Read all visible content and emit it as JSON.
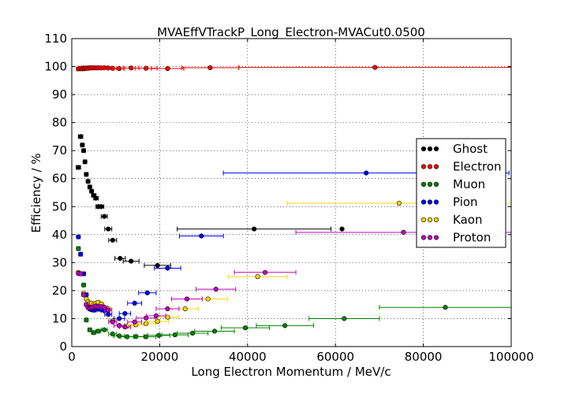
{
  "chart_data": {
    "type": "scatter",
    "title": "MVAEffVTrackP_Long_Electron-MVACut0.0500",
    "xlabel": "Long Electron Momentum / MeV/c",
    "ylabel": "Efficiency / %",
    "xlim": [
      0,
      100000
    ],
    "ylim": [
      0,
      110
    ],
    "x_ticks": [
      0,
      20000,
      40000,
      60000,
      80000,
      100000
    ],
    "y_ticks": [
      0,
      10,
      20,
      30,
      40,
      50,
      60,
      70,
      80,
      90,
      100,
      110
    ],
    "grid": true,
    "legend_position": "right",
    "series": [
      {
        "name": "Ghost",
        "color": "#000000",
        "points": [
          [
            1500,
            64,
            500
          ],
          [
            2000,
            75,
            500
          ],
          [
            2400,
            72,
            400
          ],
          [
            2700,
            70,
            400
          ],
          [
            3000,
            66,
            400
          ],
          [
            3300,
            61.5,
            400
          ],
          [
            3700,
            59,
            400
          ],
          [
            4100,
            57,
            400
          ],
          [
            4500,
            55.5,
            400
          ],
          [
            5000,
            54,
            500
          ],
          [
            5500,
            53,
            500
          ],
          [
            6000,
            50,
            500
          ],
          [
            6700,
            50,
            600
          ],
          [
            7400,
            46.5,
            700
          ],
          [
            8300,
            42,
            800
          ],
          [
            9300,
            38,
            900
          ],
          [
            11000,
            31.5,
            1200
          ],
          [
            13500,
            30.5,
            1800
          ],
          [
            19500,
            29,
            3000
          ],
          [
            41500,
            42,
            17500
          ],
          [
            61500,
            42,
            0
          ]
        ]
      },
      {
        "name": "Electron",
        "color": "#ff0000",
        "points": [
          [
            1500,
            99.2,
            400
          ],
          [
            2000,
            99.4,
            400
          ],
          [
            2400,
            99.2,
            400
          ],
          [
            2700,
            99.5,
            400
          ],
          [
            3000,
            99.3,
            400
          ],
          [
            3300,
            99.5,
            400
          ],
          [
            3700,
            99.4,
            400
          ],
          [
            4100,
            99.6,
            400
          ],
          [
            4500,
            99.5,
            400
          ],
          [
            5000,
            99.6,
            500
          ],
          [
            5500,
            99.5,
            500
          ],
          [
            6000,
            99.6,
            500
          ],
          [
            6700,
            99.5,
            600
          ],
          [
            7400,
            99.6,
            700
          ],
          [
            8300,
            99.5,
            800
          ],
          [
            9300,
            99.4,
            900
          ],
          [
            10800,
            99.3,
            1200
          ],
          [
            13500,
            99.5,
            1800
          ],
          [
            16900,
            99.4,
            2500
          ],
          [
            21800,
            99.3,
            3700
          ],
          [
            31500,
            99.6,
            6500
          ],
          [
            69000,
            99.7,
            31000
          ]
        ]
      },
      {
        "name": "Muon",
        "color": "#008000",
        "points": [
          [
            1500,
            35,
            400
          ],
          [
            2000,
            26,
            400
          ],
          [
            2700,
            22,
            400
          ],
          [
            3300,
            9.5,
            400
          ],
          [
            4100,
            6,
            400
          ],
          [
            5000,
            5,
            500
          ],
          [
            6000,
            5.5,
            500
          ],
          [
            7400,
            6,
            700
          ],
          [
            9300,
            4.5,
            900
          ],
          [
            10800,
            3.8,
            1200
          ],
          [
            12600,
            3.5,
            1500
          ],
          [
            14600,
            3.6,
            1800
          ],
          [
            16900,
            3.5,
            2200
          ],
          [
            19800,
            4,
            2500
          ],
          [
            23500,
            4.2,
            3000
          ],
          [
            27500,
            4.8,
            3500
          ],
          [
            32500,
            5.5,
            4500
          ],
          [
            39500,
            6.7,
            5500
          ],
          [
            48500,
            7.5,
            6500
          ],
          [
            62000,
            10,
            8000
          ],
          [
            85000,
            14,
            15000
          ]
        ]
      },
      {
        "name": "Pion",
        "color": "#0000ff",
        "points": [
          [
            1500,
            39.2,
            400
          ],
          [
            2000,
            33,
            400
          ],
          [
            2700,
            26,
            400
          ],
          [
            3300,
            18.5,
            400
          ],
          [
            3700,
            14.5,
            400
          ],
          [
            4100,
            13.5,
            400
          ],
          [
            4500,
            13.2,
            400
          ],
          [
            5000,
            13,
            500
          ],
          [
            5500,
            13.3,
            500
          ],
          [
            6000,
            13.6,
            500
          ],
          [
            6700,
            13.2,
            600
          ],
          [
            7400,
            12.8,
            700
          ],
          [
            8300,
            11.5,
            800
          ],
          [
            9300,
            9.2,
            900
          ],
          [
            10800,
            10,
            1200
          ],
          [
            12100,
            11.8,
            1300
          ],
          [
            14300,
            15.5,
            1600
          ],
          [
            17200,
            19.2,
            2000
          ],
          [
            21800,
            28,
            3000
          ],
          [
            29500,
            39.5,
            5000
          ],
          [
            67000,
            62,
            32500
          ]
        ]
      },
      {
        "name": "Kaon",
        "color": "#ffd700",
        "points": [
          [
            1500,
            26.5,
            400
          ],
          [
            2000,
            26,
            400
          ],
          [
            2700,
            19,
            400
          ],
          [
            3300,
            17,
            400
          ],
          [
            3700,
            16,
            400
          ],
          [
            4100,
            15.5,
            400
          ],
          [
            4500,
            15.5,
            400
          ],
          [
            5000,
            15,
            500
          ],
          [
            5500,
            15.5,
            500
          ],
          [
            6000,
            15.8,
            500
          ],
          [
            6700,
            15.2,
            600
          ],
          [
            7400,
            14,
            700
          ],
          [
            8300,
            13.5,
            800
          ],
          [
            9300,
            9.2,
            900
          ],
          [
            10800,
            7.5,
            1200
          ],
          [
            12600,
            7.3,
            1500
          ],
          [
            14600,
            7.8,
            1800
          ],
          [
            16900,
            8.2,
            2200
          ],
          [
            19500,
            9,
            2500
          ],
          [
            21800,
            10.5,
            2500
          ],
          [
            25800,
            13.5,
            3000
          ],
          [
            31000,
            17,
            4500
          ],
          [
            42300,
            25,
            6700
          ],
          [
            74500,
            51.2,
            25500
          ]
        ]
      },
      {
        "name": "Proton",
        "color": "#c000c0",
        "points": [
          [
            1500,
            26.2,
            400
          ],
          [
            2000,
            26,
            400
          ],
          [
            2700,
            18.5,
            400
          ],
          [
            3300,
            15,
            400
          ],
          [
            3700,
            14,
            400
          ],
          [
            4100,
            13.8,
            400
          ],
          [
            4500,
            14,
            400
          ],
          [
            5000,
            14.2,
            500
          ],
          [
            5500,
            14.5,
            500
          ],
          [
            6000,
            14.3,
            500
          ],
          [
            6700,
            14.3,
            600
          ],
          [
            7400,
            14,
            700
          ],
          [
            8300,
            13,
            800
          ],
          [
            9300,
            8.8,
            900
          ],
          [
            10800,
            7.5,
            1200
          ],
          [
            12100,
            7,
            1300
          ],
          [
            14300,
            8.8,
            1600
          ],
          [
            16900,
            10.2,
            2200
          ],
          [
            19200,
            11,
            2200
          ],
          [
            21800,
            13.5,
            2600
          ],
          [
            26200,
            17,
            3500
          ],
          [
            32800,
            20.5,
            4500
          ],
          [
            44000,
            26.5,
            7000
          ],
          [
            75500,
            40.8,
            24500
          ]
        ]
      }
    ]
  }
}
